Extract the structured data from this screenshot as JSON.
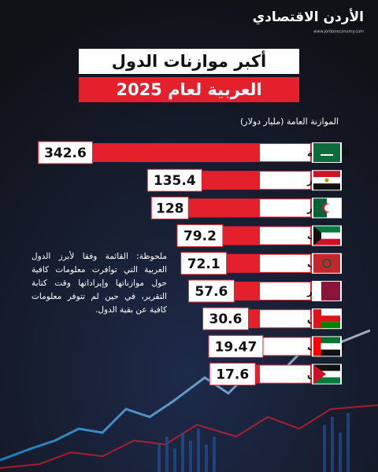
{
  "logo": {
    "name": "الأردن الاقتصادي",
    "url": "www.jordaneconomy.com"
  },
  "chart_data": {
    "type": "bar",
    "orientation": "horizontal",
    "title": "أكبر موازنات الدول",
    "title_line_2": "العربية لعام 2025",
    "subtitle": "الموازنة العامة (مليار دولار)",
    "categories": [
      "السعودية",
      "مصر",
      "الجزائر",
      "الكويت",
      "المغرب",
      "قطر",
      "عُمان",
      "الإمارات",
      "الأردن"
    ],
    "values": [
      342.6,
      135.4,
      128,
      79.2,
      72.1,
      57.6,
      30.6,
      19.47,
      17.6
    ],
    "color": "#e3202c",
    "note": "ملحوظة: القائمة وفقا لأبرز الدول العربية التي توافرت معلومات كافية حول موازناتها وإيراداتها وقت كتابة التقرير، في حين لم تتوفر معلومات كافية عن بقية الدول."
  }
}
